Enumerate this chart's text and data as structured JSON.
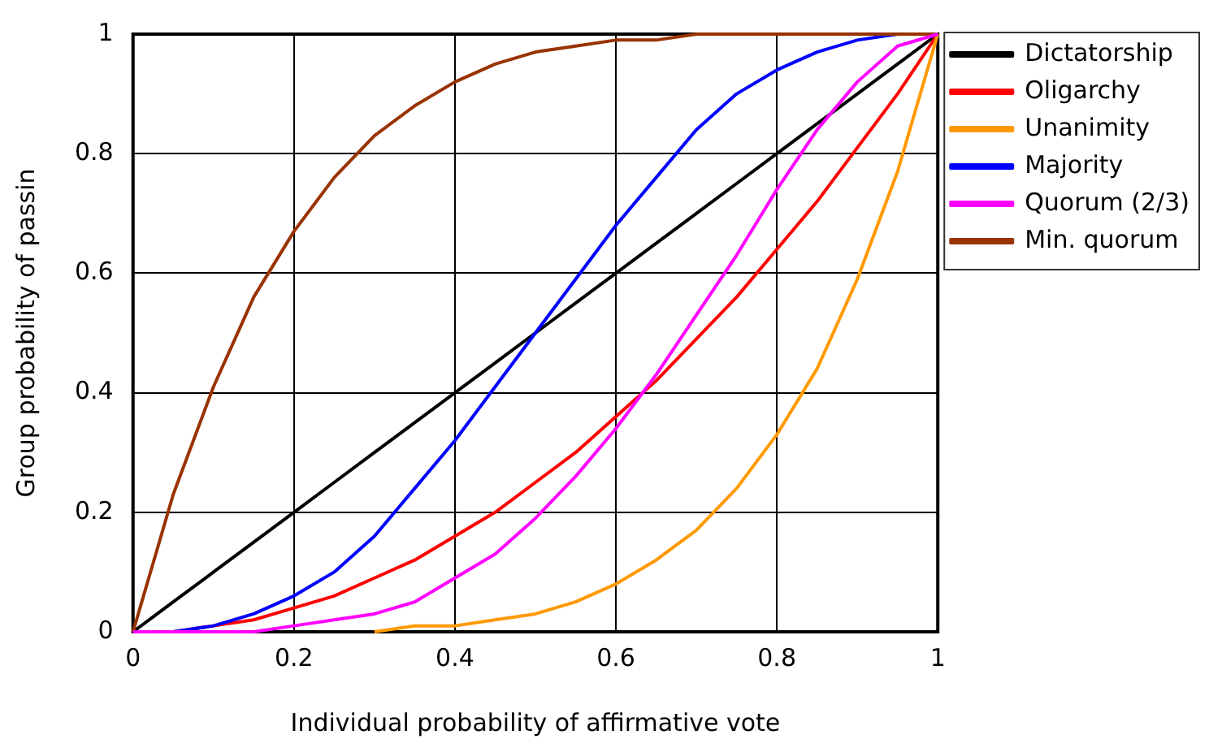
{
  "chart_data": {
    "type": "line",
    "xlabel": "Individual probability of affirmative vote",
    "ylabel": "Group probability of passin",
    "x": [
      0,
      0.05,
      0.1,
      0.15,
      0.2,
      0.25,
      0.3,
      0.35,
      0.4,
      0.45,
      0.5,
      0.55,
      0.6,
      0.65,
      0.7,
      0.75,
      0.8,
      0.85,
      0.9,
      0.95,
      1
    ],
    "series": [
      {
        "name": "Dictatorship",
        "color": "#000000",
        "values": [
          0,
          0.05,
          0.1,
          0.15,
          0.2,
          0.25,
          0.3,
          0.35,
          0.4,
          0.45,
          0.5,
          0.55,
          0.6,
          0.65,
          0.7,
          0.75,
          0.8,
          0.85,
          0.9,
          0.95,
          1
        ]
      },
      {
        "name": "Oligarchy",
        "color": "#ff0000",
        "values": [
          0,
          0,
          0.01,
          0.02,
          0.04,
          0.06,
          0.09,
          0.12,
          0.16,
          0.2,
          0.25,
          0.3,
          0.36,
          0.42,
          0.49,
          0.56,
          0.64,
          0.72,
          0.81,
          0.9,
          1
        ]
      },
      {
        "name": "Unanimity",
        "color": "#ff9900",
        "values": [
          null,
          null,
          null,
          null,
          null,
          null,
          0,
          0.01,
          0.01,
          0.02,
          0.03,
          0.05,
          0.08,
          0.12,
          0.17,
          0.24,
          0.33,
          0.44,
          0.59,
          0.77,
          1
        ]
      },
      {
        "name": "Majority",
        "color": "#0000ff",
        "values": [
          0,
          0,
          0.01,
          0.03,
          0.06,
          0.1,
          0.16,
          0.24,
          0.32,
          0.41,
          0.5,
          0.59,
          0.68,
          0.76,
          0.84,
          0.9,
          0.94,
          0.97,
          0.99,
          1,
          1
        ]
      },
      {
        "name": "Quorum (2/3)",
        "color": "#ff00ff",
        "values": [
          0,
          0,
          0,
          0,
          0.01,
          0.02,
          0.03,
          0.05,
          0.09,
          0.13,
          0.19,
          0.26,
          0.34,
          0.43,
          0.53,
          0.63,
          0.74,
          0.84,
          0.92,
          0.98,
          1
        ]
      },
      {
        "name": "Min. quorum",
        "color": "#993300",
        "values": [
          0,
          0.23,
          0.41,
          0.56,
          0.67,
          0.76,
          0.83,
          0.88,
          0.92,
          0.95,
          0.97,
          0.98,
          0.99,
          0.99,
          1,
          1,
          1,
          1,
          1,
          1,
          1
        ]
      }
    ],
    "xlim": [
      0,
      1
    ],
    "ylim": [
      0,
      1
    ],
    "xticks": [
      0,
      0.2,
      0.4,
      0.6,
      0.8,
      1
    ],
    "yticks": [
      0,
      0.2,
      0.4,
      0.6,
      0.8,
      1
    ],
    "grid": true,
    "legend": "right",
    "marker": "none",
    "line_style": "solid"
  }
}
